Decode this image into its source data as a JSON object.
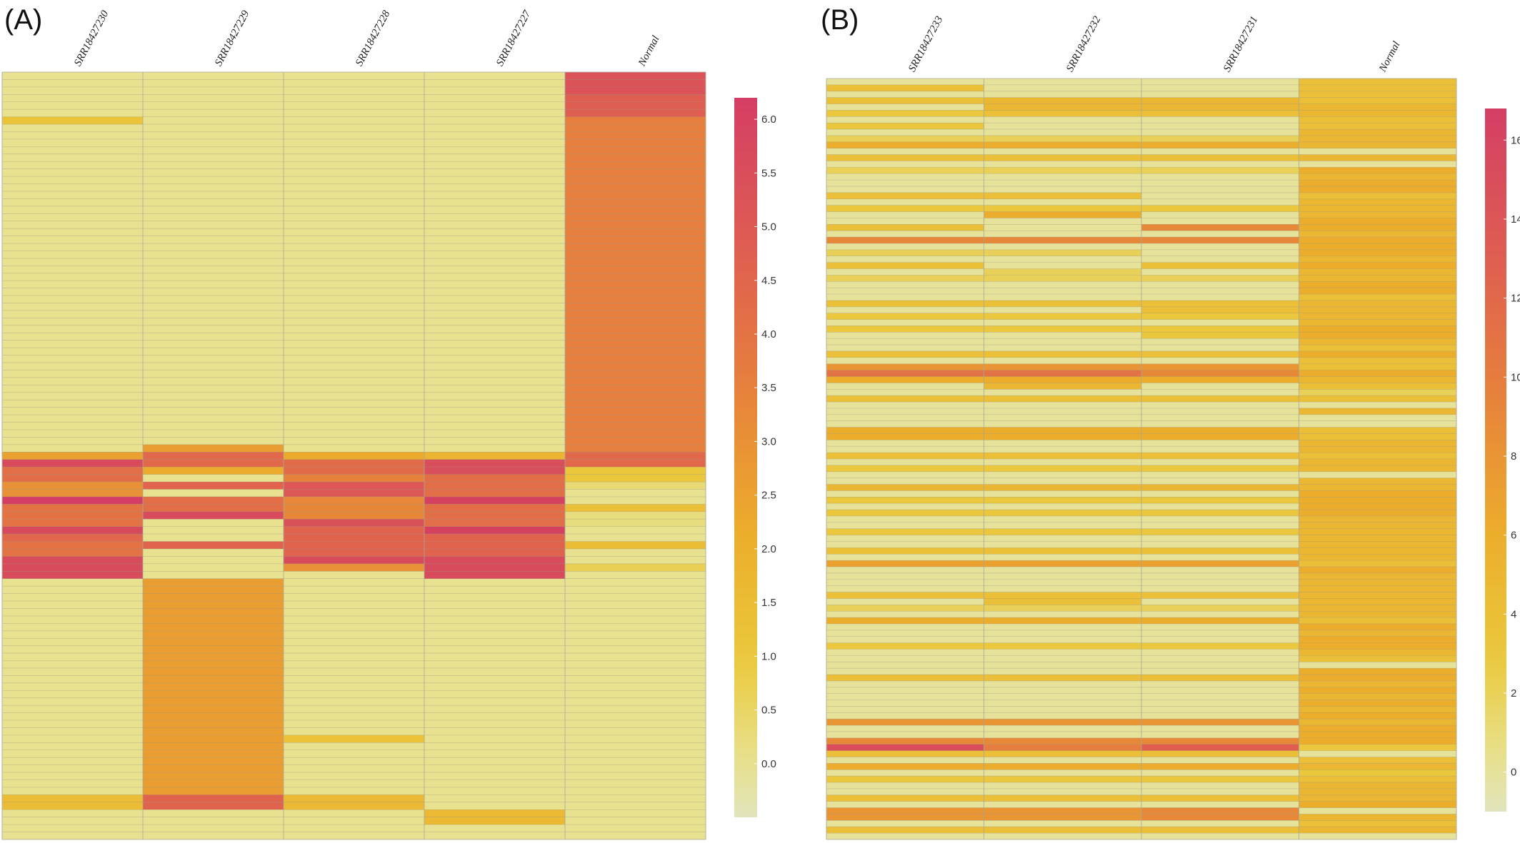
{
  "panels": [
    {
      "label": "(A)",
      "chart_data": {
        "type": "heatmap",
        "columns": [
          "SRR18427230",
          "SRR18427229",
          "SRR18427228",
          "SRR18427227",
          "Normal"
        ],
        "row_count": 103,
        "colorbar": {
          "min": -0.5,
          "max": 6.2,
          "ticks": [
            "6.0",
            "5.5",
            "5.0",
            "4.5",
            "4.0",
            "3.5",
            "3.0",
            "2.5",
            "2.0",
            "1.5",
            "1.0",
            "0.5",
            "0.0"
          ],
          "tick_values": [
            6.0,
            5.5,
            5.0,
            4.5,
            4.0,
            3.5,
            3.0,
            2.5,
            2.0,
            1.5,
            1.0,
            0.5,
            0.0
          ]
        },
        "columns_values": [
          [
            {
              "n": 6,
              "v": 0
            },
            {
              "n": 1,
              "v": 1.2
            },
            {
              "n": 44,
              "v": 0
            },
            {
              "n": 1,
              "v": 2.5
            },
            {
              "n": 1,
              "v": 5.6
            },
            {
              "n": 2,
              "v": 4.2
            },
            {
              "n": 2,
              "v": 3.0
            },
            {
              "n": 1,
              "v": 6.2
            },
            {
              "n": 3,
              "v": 4.0
            },
            {
              "n": 1,
              "v": 5.7
            },
            {
              "n": 1,
              "v": 4.5
            },
            {
              "n": 2,
              "v": 4.0
            },
            {
              "n": 3,
              "v": 5.6
            },
            {
              "n": 29,
              "v": 0
            },
            {
              "n": 2,
              "v": 1.5
            },
            {
              "n": 4,
              "v": 0
            }
          ],
          [
            {
              "n": 50,
              "v": 0
            },
            {
              "n": 1,
              "v": 2.6
            },
            {
              "n": 2,
              "v": 4.4
            },
            {
              "n": 1,
              "v": 2.2
            },
            {
              "n": 1,
              "v": 0
            },
            {
              "n": 1,
              "v": 4.6
            },
            {
              "n": 1,
              "v": 0
            },
            {
              "n": 2,
              "v": 4.2
            },
            {
              "n": 1,
              "v": 5.6
            },
            {
              "n": 3,
              "v": 0
            },
            {
              "n": 1,
              "v": 4.6
            },
            {
              "n": 4,
              "v": 0
            },
            {
              "n": 29,
              "v": 2.6
            },
            {
              "n": 2,
              "v": 4.6
            },
            {
              "n": 4,
              "v": 0
            }
          ],
          [
            {
              "n": 51,
              "v": 0
            },
            {
              "n": 1,
              "v": 2.2
            },
            {
              "n": 2,
              "v": 4.3
            },
            {
              "n": 1,
              "v": 3.5
            },
            {
              "n": 2,
              "v": 5.1
            },
            {
              "n": 3,
              "v": 3.3
            },
            {
              "n": 1,
              "v": 5.4
            },
            {
              "n": 4,
              "v": 4.6
            },
            {
              "n": 1,
              "v": 5.6
            },
            {
              "n": 1,
              "v": 3.0
            },
            {
              "n": 22,
              "v": 0
            },
            {
              "n": 1,
              "v": 1.2
            },
            {
              "n": 7,
              "v": 0
            },
            {
              "n": 2,
              "v": 1.6
            },
            {
              "n": 4,
              "v": 0
            }
          ],
          [
            {
              "n": 51,
              "v": 0
            },
            {
              "n": 1,
              "v": 1.8
            },
            {
              "n": 2,
              "v": 5.5
            },
            {
              "n": 3,
              "v": 4.2
            },
            {
              "n": 1,
              "v": 6.0
            },
            {
              "n": 3,
              "v": 4.2
            },
            {
              "n": 1,
              "v": 6.0
            },
            {
              "n": 3,
              "v": 4.6
            },
            {
              "n": 3,
              "v": 5.6
            },
            {
              "n": 31,
              "v": 0
            },
            {
              "n": 2,
              "v": 1.6
            },
            {
              "n": 2,
              "v": 0
            }
          ],
          [
            {
              "n": 3,
              "v": 5.3
            },
            {
              "n": 3,
              "v": 4.8
            },
            {
              "n": 45,
              "v": 3.6
            },
            {
              "n": 2,
              "v": 4.4
            },
            {
              "n": 2,
              "v": 1.0
            },
            {
              "n": 1,
              "v": 0.3
            },
            {
              "n": 2,
              "v": 0
            },
            {
              "n": 1,
              "v": 1.3
            },
            {
              "n": 2,
              "v": 0.2
            },
            {
              "n": 2,
              "v": 0
            },
            {
              "n": 1,
              "v": 1.5
            },
            {
              "n": 2,
              "v": 0
            },
            {
              "n": 1,
              "v": 0.7
            },
            {
              "n": 36,
              "v": 0
            }
          ]
        ]
      }
    },
    {
      "label": "(B)",
      "chart_data": {
        "type": "heatmap",
        "columns": [
          "SRR18427233",
          "SRR18427232",
          "SRR18427231",
          "Normal"
        ],
        "row_count": 120,
        "colorbar": {
          "min": -1,
          "max": 16.8,
          "ticks": [
            "16",
            "14",
            "12",
            "10",
            "8",
            "6",
            "4",
            "2",
            "0"
          ],
          "tick_values": [
            16,
            14,
            12,
            10,
            8,
            6,
            4,
            2,
            0
          ]
        },
        "columns_values": [
          [
            0,
            4,
            0,
            4,
            0,
            3,
            0,
            3,
            0,
            2,
            6,
            0,
            4,
            0,
            2,
            0,
            0,
            0,
            4,
            0,
            3,
            0,
            0,
            4,
            0,
            9,
            0,
            2,
            0,
            4,
            0,
            2,
            0,
            0,
            0,
            4,
            0,
            3,
            0,
            3,
            0,
            0,
            0,
            4,
            0,
            8,
            11,
            6,
            0,
            0,
            4,
            0,
            0,
            0,
            0,
            6,
            6,
            0,
            0,
            4,
            0,
            3,
            0,
            0,
            5,
            0,
            3,
            0,
            3,
            0,
            0,
            3,
            0,
            0,
            4,
            0,
            7,
            0,
            0,
            0,
            0,
            4,
            0,
            2,
            0,
            6,
            0,
            0,
            0,
            3,
            0,
            0,
            0,
            0,
            4,
            0,
            0,
            0,
            0,
            0,
            0,
            8,
            0,
            0,
            9,
            15,
            4,
            0,
            6,
            0,
            3,
            0,
            0,
            4,
            0,
            8,
            8,
            0,
            4,
            0
          ],
          [
            0,
            0,
            0,
            5,
            5,
            4,
            0,
            0,
            0,
            2,
            6,
            0,
            4,
            0,
            2,
            0,
            0,
            0,
            4,
            0,
            3,
            6,
            0,
            0,
            0,
            9,
            0,
            2,
            0,
            0,
            2,
            2,
            0,
            0,
            0,
            4,
            0,
            3,
            0,
            3,
            0,
            0,
            0,
            4,
            0,
            8,
            11,
            6,
            5,
            0,
            4,
            0,
            0,
            0,
            0,
            6,
            6,
            0,
            0,
            4,
            0,
            3,
            0,
            0,
            5,
            0,
            3,
            0,
            3,
            0,
            0,
            3,
            0,
            0,
            4,
            0,
            7,
            0,
            0,
            0,
            0,
            4,
            4,
            2,
            0,
            6,
            0,
            0,
            0,
            3,
            0,
            0,
            0,
            0,
            4,
            0,
            0,
            0,
            0,
            0,
            0,
            8,
            0,
            0,
            9,
            10,
            4,
            0,
            6,
            0,
            3,
            0,
            0,
            4,
            0,
            8,
            8,
            0,
            4,
            0
          ],
          [
            0,
            0,
            0,
            5,
            5,
            4,
            0,
            0,
            0,
            2,
            6,
            0,
            4,
            0,
            2,
            0,
            0,
            0,
            0,
            0,
            3,
            0,
            0,
            9,
            0,
            9,
            0,
            0,
            0,
            4,
            0,
            2,
            0,
            0,
            0,
            4,
            4,
            3,
            0,
            3,
            3,
            0,
            0,
            4,
            0,
            8,
            9,
            6,
            0,
            0,
            4,
            0,
            0,
            0,
            0,
            6,
            6,
            0,
            0,
            4,
            0,
            3,
            0,
            0,
            5,
            0,
            3,
            0,
            3,
            0,
            0,
            3,
            0,
            0,
            4,
            0,
            7,
            0,
            0,
            0,
            0,
            4,
            0,
            2,
            0,
            6,
            0,
            0,
            0,
            3,
            0,
            0,
            0,
            0,
            4,
            0,
            0,
            0,
            0,
            0,
            0,
            8,
            0,
            0,
            9,
            13,
            4,
            0,
            6,
            0,
            3,
            0,
            0,
            4,
            0,
            9,
            9,
            0,
            4,
            0
          ],
          [
            4,
            4,
            4,
            4,
            5,
            5,
            4,
            4,
            5,
            5,
            5,
            0,
            5,
            0,
            6,
            5,
            6,
            6,
            4,
            5,
            5,
            5,
            6,
            6,
            5,
            6,
            6,
            6,
            5,
            6,
            5,
            5,
            6,
            6,
            4,
            5,
            5,
            5,
            5,
            6,
            6,
            5,
            4,
            6,
            4,
            4,
            6,
            5,
            4,
            2,
            4,
            0,
            5,
            0,
            0,
            4,
            4,
            5,
            5,
            4,
            5,
            5,
            0,
            5,
            5,
            6,
            6,
            6,
            6,
            5,
            5,
            5,
            5,
            5,
            5,
            5,
            4,
            6,
            5,
            5,
            5,
            5,
            5,
            5,
            5,
            4,
            6,
            5,
            6,
            6,
            5,
            4,
            0,
            6,
            6,
            5,
            6,
            5,
            6,
            5,
            6,
            5,
            6,
            6,
            6,
            3,
            0,
            4,
            5,
            3,
            4,
            5,
            5,
            5,
            6,
            0,
            5,
            4,
            5,
            0
          ]
        ]
      }
    }
  ]
}
